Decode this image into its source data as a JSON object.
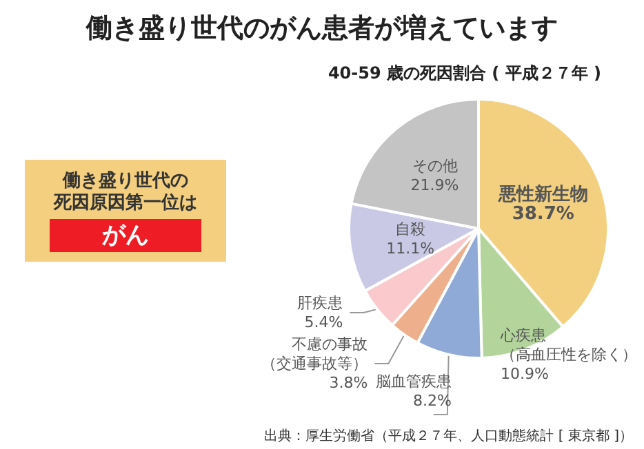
{
  "chart_data": [
    {
      "type": "other",
      "annotations": [
        "働き盛り世代の",
        "死因原因第一位は",
        "がん"
      ]
    },
    {
      "type": "pie",
      "title": "働き盛り世代のがん患者が増えています",
      "subtitle": "40-59 歳の死因割合 ( 平成２７年 )",
      "annotations": [
        "出典：厚生労働省（平成２７年、人口動態統計 [ 東京都 ]）"
      ],
      "categories": [
        "悪性新生物",
        "心疾患（高血圧性を除く）",
        "脳血管疾患",
        "不慮の事故（交通事故等）",
        "肝疾患",
        "自殺",
        "その他"
      ],
      "values": [
        38.7,
        10.9,
        8.2,
        3.8,
        5.4,
        11.1,
        21.9
      ],
      "value_labels": [
        "38.7%",
        "10.9%",
        "8.2%",
        "3.8%",
        "5.4%",
        "11.1%",
        "21.9%"
      ],
      "colors": [
        "#f3d07f",
        "#b3d59c",
        "#8faad6",
        "#eeb08c",
        "#f9c9cc",
        "#c9c9e6",
        "#c4c4c4"
      ]
    }
  ]
}
